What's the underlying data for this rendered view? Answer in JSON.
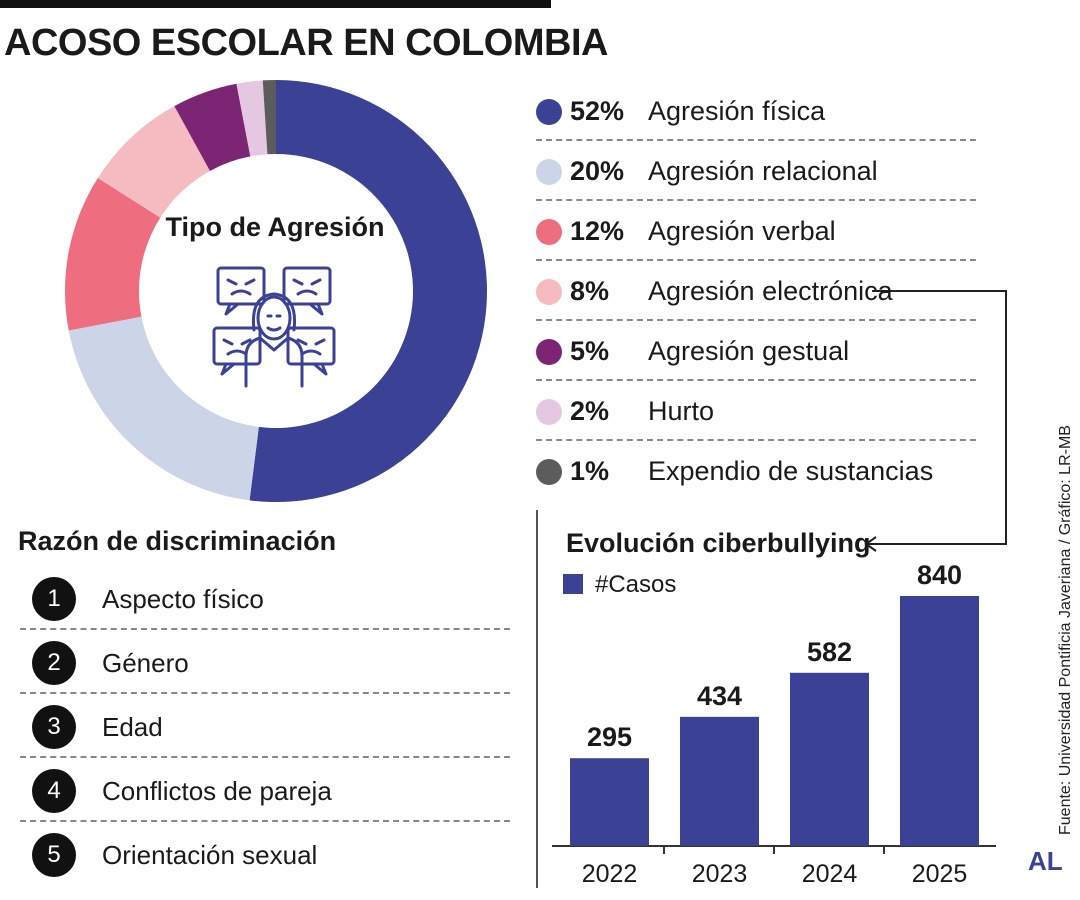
{
  "title": "ACOSO ESCOLAR EN COLOMBIA",
  "donut": {
    "center_label": "Tipo de Agresión",
    "center_icon": "bullying-group-icon"
  },
  "chart_data": [
    {
      "type": "pie",
      "title": "Tipo de Agresión",
      "slices": [
        {
          "pct": "52%",
          "label": "Agresión física",
          "value": 52,
          "color": "#3b4296"
        },
        {
          "pct": "20%",
          "label": "Agresión relacional",
          "value": 20,
          "color": "#ccd5e8"
        },
        {
          "pct": "12%",
          "label": "Agresión verbal",
          "value": 12,
          "color": "#ee6d7e"
        },
        {
          "pct": "8%",
          "label": "Agresión electrónica",
          "value": 8,
          "color": "#f4bcc0"
        },
        {
          "pct": "5%",
          "label": "Agresión gestual",
          "value": 5,
          "color": "#7b2574"
        },
        {
          "pct": "2%",
          "label": "Hurto",
          "value": 2,
          "color": "#e6c7e2"
        },
        {
          "pct": "1%",
          "label": "Expendio de sustancias",
          "value": 1,
          "color": "#5c5c5c"
        }
      ]
    },
    {
      "type": "bar",
      "title": "Evolución ciberbullying",
      "legend": "#Casos",
      "categories": [
        "2022",
        "2023",
        "2024",
        "2025"
      ],
      "values": [
        295,
        434,
        582,
        840
      ],
      "color": "#3b4296"
    }
  ],
  "discrimination": {
    "title": "Razón de discriminación",
    "items": [
      {
        "num": "1",
        "label": "Aspecto físico"
      },
      {
        "num": "2",
        "label": "Género"
      },
      {
        "num": "3",
        "label": "Edad"
      },
      {
        "num": "4",
        "label": "Conflictos de pareja"
      },
      {
        "num": "5",
        "label": "Orientación sexual"
      }
    ]
  },
  "source": "Fuente: Universidad Pontificia Javeriana / Gráfico: LR-MB",
  "brand": "AL"
}
